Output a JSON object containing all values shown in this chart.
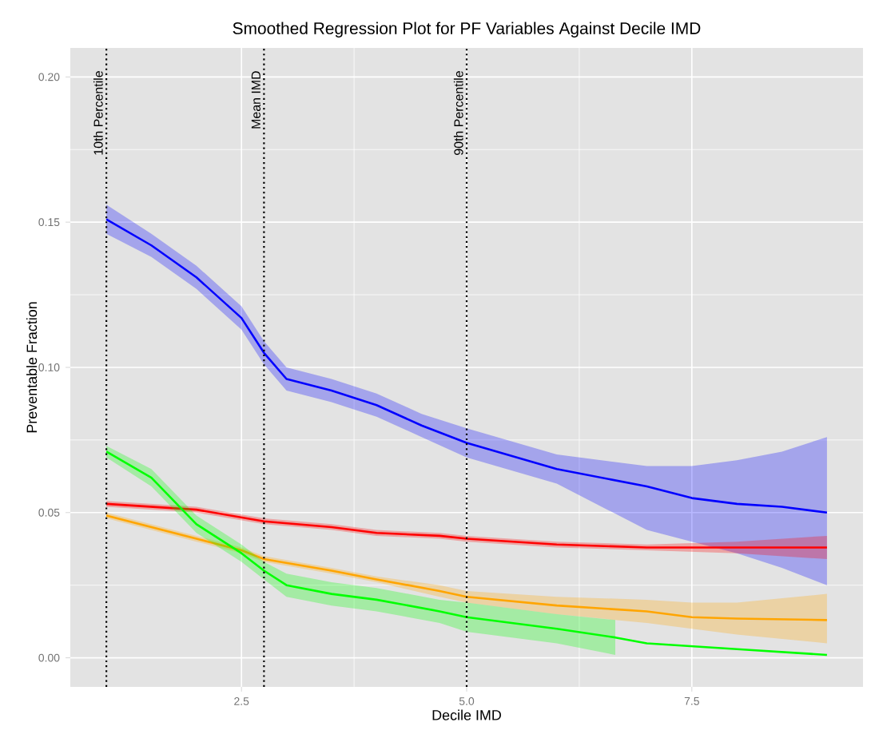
{
  "chart_data": {
    "type": "line",
    "title": "Smoothed Regression Plot for PF Variables Against Decile IMD",
    "xlabel": "Decile IMD",
    "ylabel": "Preventable Fraction",
    "xlim": [
      0.6,
      9.4
    ],
    "ylim": [
      -0.01,
      0.21
    ],
    "xticks": [
      {
        "value": 2.5,
        "label": "2.5"
      },
      {
        "value": 5.0,
        "label": "5.0"
      },
      {
        "value": 7.5,
        "label": "7.5"
      }
    ],
    "yticks": [
      {
        "value": 0.0,
        "label": "0.00"
      },
      {
        "value": 0.05,
        "label": "0.05"
      },
      {
        "value": 0.1,
        "label": "0.10"
      },
      {
        "value": 0.15,
        "label": "0.15"
      },
      {
        "value": 0.2,
        "label": "0.20"
      }
    ],
    "grid": true,
    "line_style": "solid",
    "ref_lines": [
      {
        "axis": "x",
        "value": 1,
        "label": "10th Percentile",
        "color": "#000000",
        "line_style": "dotted"
      },
      {
        "axis": "x",
        "value": 2.75,
        "label": "Mean IMD",
        "color": "#000000",
        "line_style": "dotted"
      },
      {
        "axis": "x",
        "value": 5.0,
        "label": "90th Percentile",
        "color": "#000000",
        "line_style": "dotted"
      }
    ],
    "series": [
      {
        "color": "#0000ff",
        "x": [
          1,
          1.5,
          2,
          2.5,
          2.75,
          3,
          3.5,
          4,
          4.5,
          5,
          6,
          7,
          7.5,
          8,
          8.5,
          9
        ],
        "values": [
          0.151,
          0.142,
          0.131,
          0.117,
          0.105,
          0.096,
          0.092,
          0.087,
          0.08,
          0.074,
          0.065,
          0.059,
          0.055,
          0.053,
          0.052,
          0.05
        ],
        "lower": [
          0.146,
          0.138,
          0.127,
          0.113,
          0.101,
          0.092,
          0.088,
          0.083,
          0.076,
          0.069,
          0.06,
          0.044,
          0.04,
          0.036,
          0.031,
          0.025
        ],
        "upper": [
          0.156,
          0.146,
          0.135,
          0.121,
          0.109,
          0.1,
          0.096,
          0.091,
          0.084,
          0.079,
          0.07,
          0.066,
          0.066,
          0.068,
          0.071,
          0.076
        ]
      },
      {
        "color": "#ff0000",
        "x": [
          1,
          2,
          2.75,
          3.5,
          4,
          4.7,
          5,
          6,
          7,
          8,
          9
        ],
        "values": [
          0.053,
          0.051,
          0.047,
          0.045,
          0.043,
          0.042,
          0.041,
          0.039,
          0.038,
          0.038,
          0.038
        ],
        "lower": [
          0.052,
          0.05,
          0.046,
          0.044,
          0.042,
          0.041,
          0.04,
          0.038,
          0.037,
          0.036,
          0.034
        ],
        "upper": [
          0.054,
          0.052,
          0.048,
          0.046,
          0.044,
          0.043,
          0.042,
          0.04,
          0.039,
          0.04,
          0.042
        ]
      },
      {
        "color": "#ffa500",
        "x": [
          1,
          2,
          2.5,
          2.75,
          3.5,
          4,
          4.7,
          5,
          6,
          7,
          7.5,
          8,
          9
        ],
        "values": [
          0.049,
          0.041,
          0.037,
          0.034,
          0.03,
          0.027,
          0.023,
          0.021,
          0.018,
          0.016,
          0.014,
          0.0135,
          0.013
        ],
        "lower": [
          0.048,
          0.04,
          0.036,
          0.033,
          0.029,
          0.026,
          0.021,
          0.019,
          0.015,
          0.012,
          0.01,
          0.008,
          0.005
        ],
        "upper": [
          0.05,
          0.042,
          0.038,
          0.035,
          0.031,
          0.028,
          0.025,
          0.023,
          0.021,
          0.02,
          0.019,
          0.019,
          0.022
        ]
      },
      {
        "color": "#00ff00",
        "x": [
          1,
          1.5,
          2,
          2.5,
          2.75,
          3,
          3.5,
          4,
          4.7,
          5,
          6,
          6.65,
          7,
          8,
          9
        ],
        "values": [
          0.071,
          0.062,
          0.046,
          0.036,
          0.03,
          0.025,
          0.022,
          0.02,
          0.016,
          0.014,
          0.01,
          0.007,
          0.005,
          0.003,
          0.001
        ],
        "lower": [
          0.069,
          0.059,
          0.043,
          0.033,
          0.027,
          0.021,
          0.018,
          0.016,
          0.012,
          0.009,
          0.005,
          0.001,
          null,
          null,
          null
        ],
        "upper": [
          0.073,
          0.065,
          0.049,
          0.039,
          0.033,
          0.029,
          0.026,
          0.024,
          0.02,
          0.019,
          0.015,
          0.013,
          null,
          null,
          null
        ]
      }
    ]
  }
}
